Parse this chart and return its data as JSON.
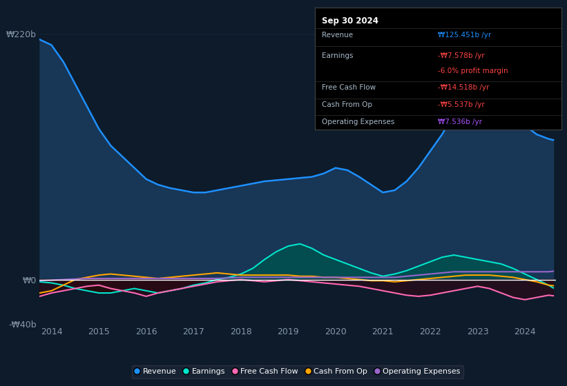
{
  "bg_color": "#0d1b2a",
  "plot_bg_color": "#0d1b2a",
  "grid_color": "#1e3050",
  "zero_line_color": "#ffffff",
  "ylim": [
    -40,
    240
  ],
  "xlabel_color": "#8899aa",
  "title_box": {
    "date": "Sep 30 2024",
    "rows": [
      {
        "label": "Revenue",
        "value": "₩125.451b /yr",
        "value_color": "#1e90ff"
      },
      {
        "label": "Earnings",
        "value": "-₩7.578b /yr",
        "value_color": "#ff4444"
      },
      {
        "label": "",
        "value": "-6.0% profit margin",
        "value_color": "#ff4444"
      },
      {
        "label": "Free Cash Flow",
        "value": "-₩14.518b /yr",
        "value_color": "#ff4444"
      },
      {
        "label": "Cash From Op",
        "value": "-₩5.537b /yr",
        "value_color": "#ff4444"
      },
      {
        "label": "Operating Expenses",
        "value": "₩7.536b /yr",
        "value_color": "#aa55ff"
      }
    ]
  },
  "legend": [
    {
      "label": "Revenue",
      "color": "#1e90ff"
    },
    {
      "label": "Earnings",
      "color": "#00e5cc"
    },
    {
      "label": "Free Cash Flow",
      "color": "#ff69b4"
    },
    {
      "label": "Cash From Op",
      "color": "#ffa500"
    },
    {
      "label": "Operating Expenses",
      "color": "#9966cc"
    }
  ],
  "series": {
    "years": [
      2013.75,
      2014.0,
      2014.25,
      2014.5,
      2014.75,
      2015.0,
      2015.25,
      2015.5,
      2015.75,
      2016.0,
      2016.25,
      2016.5,
      2016.75,
      2017.0,
      2017.25,
      2017.5,
      2017.75,
      2018.0,
      2018.25,
      2018.5,
      2018.75,
      2019.0,
      2019.25,
      2019.5,
      2019.75,
      2020.0,
      2020.25,
      2020.5,
      2020.75,
      2021.0,
      2021.25,
      2021.5,
      2021.75,
      2022.0,
      2022.25,
      2022.5,
      2022.75,
      2023.0,
      2023.25,
      2023.5,
      2023.75,
      2024.0,
      2024.25,
      2024.5,
      2024.6
    ],
    "revenue": [
      215,
      210,
      195,
      175,
      155,
      135,
      120,
      110,
      100,
      90,
      85,
      82,
      80,
      78,
      78,
      80,
      82,
      84,
      86,
      88,
      89,
      90,
      91,
      92,
      95,
      100,
      98,
      92,
      85,
      78,
      80,
      88,
      100,
      115,
      130,
      148,
      162,
      170,
      165,
      160,
      148,
      138,
      130,
      126,
      125
    ],
    "earnings": [
      -2,
      -3,
      -5,
      -8,
      -10,
      -12,
      -12,
      -10,
      -8,
      -10,
      -12,
      -10,
      -8,
      -5,
      -3,
      0,
      2,
      5,
      10,
      18,
      25,
      30,
      32,
      28,
      22,
      18,
      14,
      10,
      6,
      3,
      5,
      8,
      12,
      16,
      20,
      22,
      20,
      18,
      16,
      14,
      10,
      5,
      0,
      -5,
      -7.5
    ],
    "free_cash_flow": [
      -15,
      -12,
      -10,
      -8,
      -6,
      -5,
      -8,
      -10,
      -12,
      -15,
      -12,
      -10,
      -8,
      -6,
      -4,
      -2,
      -1,
      0,
      -1,
      -2,
      -1,
      0,
      -1,
      -2,
      -3,
      -4,
      -5,
      -6,
      -8,
      -10,
      -12,
      -14,
      -15,
      -14,
      -12,
      -10,
      -8,
      -6,
      -8,
      -12,
      -16,
      -18,
      -16,
      -14,
      -14.5
    ],
    "cash_from_op": [
      -12,
      -10,
      -5,
      0,
      2,
      4,
      5,
      4,
      3,
      2,
      1,
      2,
      3,
      4,
      5,
      6,
      5,
      4,
      4,
      4,
      4,
      4,
      3,
      3,
      2,
      2,
      1,
      0,
      -1,
      -1,
      -2,
      -1,
      0,
      1,
      2,
      3,
      4,
      4,
      4,
      3,
      2,
      0,
      -2,
      -5,
      -5.5
    ],
    "operating_expenses": [
      -1,
      -0.5,
      0,
      0.5,
      1,
      1,
      1,
      1,
      1,
      1,
      1,
      1,
      1,
      1,
      1,
      1,
      1.5,
      2,
      2,
      2,
      2,
      2,
      2,
      2,
      2,
      2,
      2,
      2,
      2,
      2,
      2,
      3,
      4,
      5,
      6,
      7,
      7,
      7,
      7,
      7,
      7,
      7,
      7,
      7,
      7.5
    ]
  }
}
